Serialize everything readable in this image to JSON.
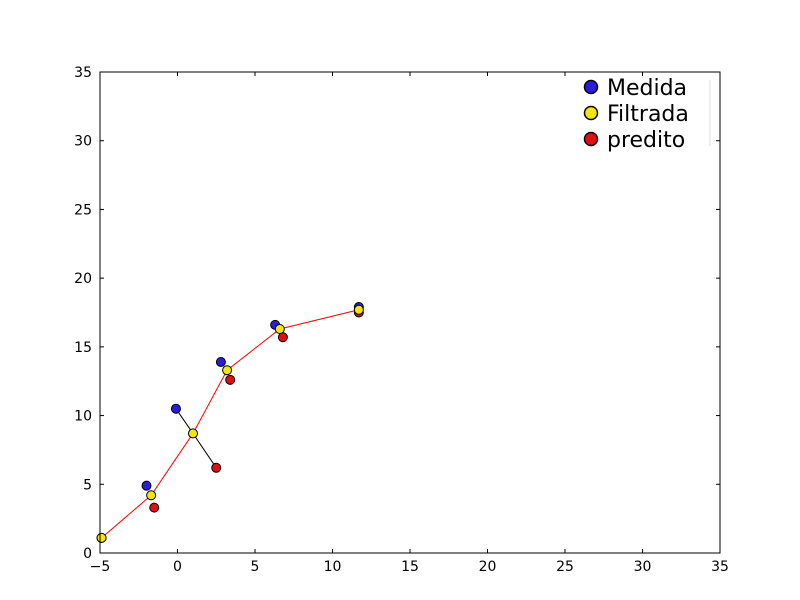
{
  "chart_data": {
    "type": "scatter",
    "title": "",
    "xlabel": "",
    "ylabel": "",
    "xlim": [
      -5,
      35
    ],
    "ylim": [
      0,
      35
    ],
    "xticks": [
      -5,
      0,
      5,
      10,
      15,
      20,
      25,
      30,
      35
    ],
    "yticks": [
      0,
      5,
      10,
      15,
      20,
      25,
      30,
      35
    ],
    "xtick_labels": [
      "−5",
      "0",
      "5",
      "10",
      "15",
      "20",
      "25",
      "30",
      "35"
    ],
    "ytick_labels": [
      "0",
      "5",
      "10",
      "15",
      "20",
      "25",
      "30",
      "35"
    ],
    "grid": false,
    "legend_position": "top-right",
    "colors": {
      "medida": "#2a1bde",
      "filtrada": "#f5e50f",
      "predito": "#e01010",
      "filtered_line": "#ff0000",
      "link_line": "#000000"
    },
    "series": [
      {
        "name": "Medida",
        "points": [
          [
            -2.0,
            4.9
          ],
          [
            -0.1,
            10.5
          ],
          [
            2.8,
            13.9
          ],
          [
            6.3,
            16.6
          ],
          [
            11.7,
            17.9
          ]
        ]
      },
      {
        "name": "Filtrada",
        "points": [
          [
            -4.9,
            1.1
          ],
          [
            -1.7,
            4.2
          ],
          [
            1.0,
            8.7
          ],
          [
            3.2,
            13.3
          ],
          [
            6.6,
            16.3
          ],
          [
            11.7,
            17.7
          ]
        ]
      },
      {
        "name": "predito",
        "points": [
          [
            -4.9,
            1.1
          ],
          [
            -1.5,
            3.3
          ],
          [
            2.5,
            6.2
          ],
          [
            3.4,
            12.6
          ],
          [
            6.8,
            15.7
          ],
          [
            11.7,
            17.5
          ]
        ]
      }
    ]
  }
}
